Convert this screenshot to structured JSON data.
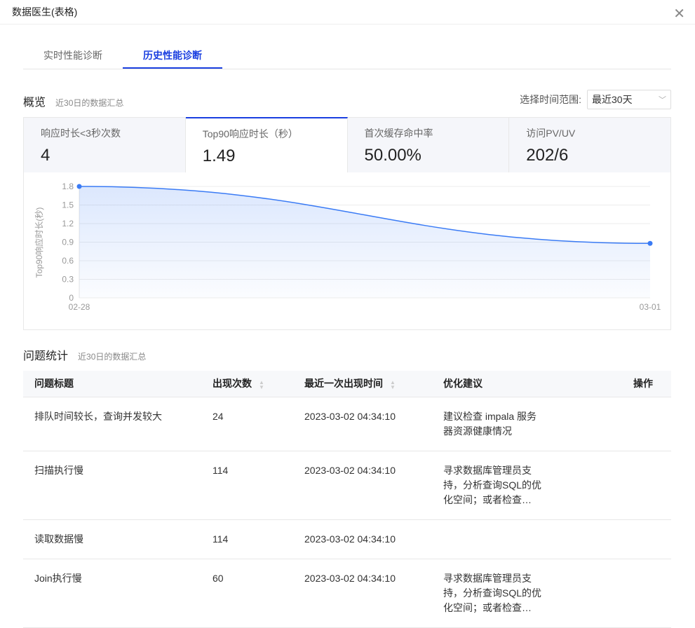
{
  "window": {
    "title": "数据医生(表格)",
    "close_icon": "close-icon"
  },
  "tabs": [
    {
      "label": "实时性能诊断",
      "active": false
    },
    {
      "label": "历史性能诊断",
      "active": true
    }
  ],
  "overview": {
    "title": "概览",
    "subtitle": "近30日的数据汇总",
    "range_label": "选择时间范围:",
    "range_value": "最近30天"
  },
  "cards": [
    {
      "label": "响应时长<3秒次数",
      "value": "4"
    },
    {
      "label": "Top90响应时长（秒）",
      "value": "1.49"
    },
    {
      "label": "首次缓存命中率",
      "value": "50.00%"
    },
    {
      "label": "访问PV/UV",
      "value": "202/6"
    }
  ],
  "chart_data": {
    "type": "area",
    "x": [
      "02-28",
      "03-01"
    ],
    "values": [
      1.8,
      0.88
    ],
    "ylabel": "Top90响应时长(秒)",
    "ylim": [
      0,
      1.8
    ],
    "yticks": [
      "0",
      "0.3",
      "0.6",
      "0.9",
      "1.2",
      "1.5",
      "1.8"
    ],
    "grid": true,
    "color": "#3a7bf5"
  },
  "issues": {
    "title": "问题统计",
    "subtitle": "近30日的数据汇总",
    "columns": [
      "问题标题",
      "出现次数",
      "最近一次出现时间",
      "优化建议",
      "操作"
    ],
    "rows": [
      {
        "title": "排队时间较长，查询并发较大",
        "count": "24",
        "time": "2023-03-02 04:34:10",
        "advice": "建议检查 impala 服务器资源健康情况"
      },
      {
        "title": "扫描执行慢",
        "count": "114",
        "time": "2023-03-02 04:34:10",
        "advice": "寻求数据库管理员支持，分析查询SQL的优化空间；或者检查…"
      },
      {
        "title": "读取数据慢",
        "count": "114",
        "time": "2023-03-02 04:34:10",
        "advice": ""
      },
      {
        "title": "Join执行慢",
        "count": "60",
        "time": "2023-03-02 04:34:10",
        "advice": "寻求数据库管理员支持，分析查询SQL的优化空间；或者检查…"
      }
    ]
  }
}
